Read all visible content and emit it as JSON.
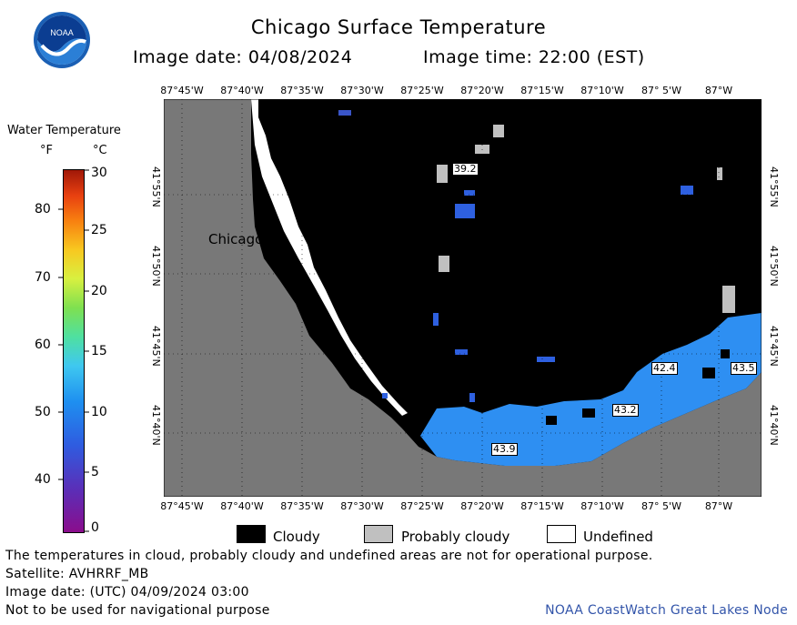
{
  "header": {
    "title": "Chicago Surface Temperature",
    "image_date": "Image date: 04/08/2024",
    "image_time": "Image time: 22:00 (EST)"
  },
  "logo": {
    "text": "NOAA",
    "icon": "noaa-logo-icon"
  },
  "legend": {
    "title": "Water Temperature",
    "unit_f": "°F",
    "unit_c": "°C",
    "f_ticks": [
      "80",
      "70",
      "60",
      "50",
      "40"
    ],
    "c_ticks": [
      "30",
      "25",
      "20",
      "15",
      "10",
      "5",
      "0"
    ],
    "colors": [
      "#8a0d8c",
      "#5a2fb8",
      "#2f5ce0",
      "#1e8ff0",
      "#3fc8f0",
      "#4fe0a0",
      "#7fe050",
      "#d8f040",
      "#f8c820",
      "#f88010",
      "#e84010",
      "#a01808"
    ]
  },
  "map": {
    "city_label": "Chicago",
    "lon_labels": [
      "87°45'W",
      "87°40'W",
      "87°35'W",
      "87°30'W",
      "87°25'W",
      "87°20'W",
      "87°15'W",
      "87°10'W",
      "87° 5'W",
      "87°W"
    ],
    "lat_labels": [
      "41°55'N",
      "41°50'N",
      "41°45'N",
      "41°40'N"
    ],
    "temp_callouts": [
      "39.2",
      "42.4",
      "43.5",
      "43.2",
      "43.9"
    ],
    "colors": {
      "land": "#787878",
      "cloud": "#000000",
      "probably_cloudy": "#c0c0c0",
      "undefined": "#ffffff",
      "water": "#2e8ff2"
    }
  },
  "key": {
    "cloudy": "Cloudy",
    "probably_cloudy": "Probably cloudy",
    "undefined": "Undefined"
  },
  "footer": {
    "disclaimer": "The temperatures in cloud, probably cloudy and undefined areas are not for operational purpose.",
    "satellite": "Satellite: AVHRRF_MB",
    "utc_date": "Image date: (UTC) 04/09/2024  03:00",
    "nav_warning": "Not to be used for navigational purpose",
    "credit": "NOAA CoastWatch Great Lakes Node"
  }
}
